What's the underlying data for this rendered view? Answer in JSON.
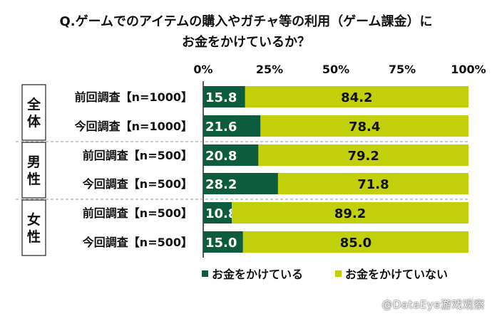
{
  "title_line1": "Q.ゲームでのアイテムの購入やガチャ等の利用（ゲーム課金）に",
  "title_line2": "お金をかけているか？",
  "watermark": "@DataEye游戏观察",
  "chart_data": {
    "type": "bar",
    "orientation": "horizontal",
    "stacked": true,
    "xlim": [
      0,
      100
    ],
    "xticks": [
      "0%",
      "25%",
      "50%",
      "75%",
      "100%"
    ],
    "groups": [
      {
        "label": "全体",
        "rows": [
          "前回調査【n=1000】",
          "今回調査【n=1000】"
        ]
      },
      {
        "label": "男性",
        "rows": [
          "前回調査【n=500】",
          "今回調査【n=500】"
        ]
      },
      {
        "label": "女性",
        "rows": [
          "前回調査【n=500】",
          "今回調査【n=500】"
        ]
      }
    ],
    "categories": [
      "前回調査【n=1000】",
      "今回調査【n=1000】",
      "前回調査【n=500】",
      "今回調査【n=500】",
      "前回調査【n=500】",
      "今回調査【n=500】"
    ],
    "series": [
      {
        "name": "お金をかけている",
        "color": "#0d5c3d",
        "values": [
          15.8,
          21.6,
          20.8,
          28.2,
          10.8,
          15.0
        ],
        "labels": [
          "15.8",
          "21.6",
          "20.8",
          "28.2",
          "10.8",
          "15.0"
        ]
      },
      {
        "name": "お金をかけていない",
        "color": "#c2cf0b",
        "values": [
          84.2,
          78.4,
          79.2,
          71.8,
          89.2,
          85.0
        ],
        "labels": [
          "84.2",
          "78.4",
          "79.2",
          "71.8",
          "89.2",
          "85.0"
        ]
      }
    ],
    "legend_position": "bottom-right",
    "grid": false
  }
}
